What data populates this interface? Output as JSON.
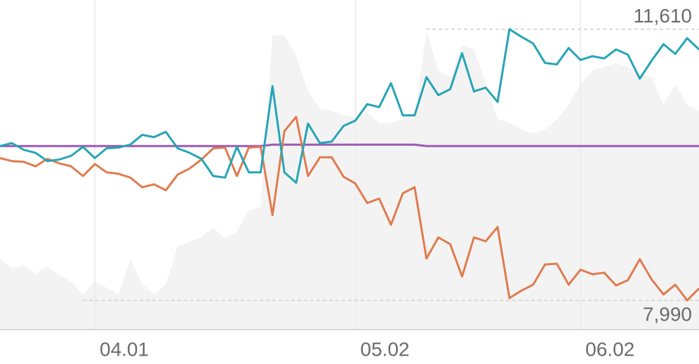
{
  "chart_data": {
    "type": "line",
    "categories": [
      null,
      null,
      null,
      null,
      null,
      null,
      null,
      null,
      "04.01",
      null,
      null,
      null,
      null,
      null,
      null,
      null,
      null,
      null,
      null,
      null,
      null,
      null,
      null,
      null,
      null,
      null,
      null,
      null,
      null,
      null,
      "05.02",
      null,
      null,
      null,
      null,
      null,
      null,
      null,
      null,
      null,
      null,
      null,
      null,
      null,
      null,
      null,
      null,
      null,
      null,
      "06.02",
      null,
      null,
      null,
      null,
      null,
      null,
      null,
      null,
      null,
      null
    ],
    "ylim": [
      7600,
      12000
    ],
    "grid": true,
    "annotations": [
      {
        "value": 11610,
        "label": "11,610"
      },
      {
        "value": 7990,
        "label": "7,990"
      }
    ],
    "series": [
      {
        "kind": "area",
        "color": "#f3f3f3",
        "values": [
          8550,
          8420,
          8460,
          8350,
          8440,
          8330,
          8240,
          8070,
          8240,
          8160,
          8070,
          8540,
          8210,
          8070,
          8210,
          8720,
          8770,
          8840,
          8960,
          8820,
          8910,
          9190,
          9240,
          11530,
          11530,
          11250,
          10780,
          10550,
          10520,
          10460,
          10430,
          10500,
          10360,
          10360,
          10410,
          10460,
          11580,
          11060,
          10970,
          11390,
          11340,
          10880,
          10410,
          10360,
          10270,
          10220,
          10270,
          10410,
          10600,
          10880,
          11060,
          11110,
          11160,
          11110,
          11020,
          10970,
          10600,
          10880,
          10600,
          10520
        ]
      },
      {
        "color": "#9b59b6",
        "values": [
          10050,
          10050,
          10050,
          10050,
          10050,
          10050,
          10050,
          10050,
          10050,
          10050,
          10050,
          10050,
          10050,
          10050,
          10050,
          10050,
          10050,
          10050,
          10050,
          10050,
          10050,
          10050,
          10050,
          10070,
          10070,
          10070,
          10070,
          10070,
          10070,
          10070,
          10070,
          10070,
          10070,
          10070,
          10070,
          10070,
          10050,
          10050,
          10050,
          10050,
          10050,
          10050,
          10050,
          10050,
          10050,
          10050,
          10050,
          10050,
          10050,
          10050,
          10050,
          10050,
          10050,
          10050,
          10050,
          10050,
          10050,
          10050,
          10050,
          10050
        ]
      },
      {
        "color": "#e07b4f",
        "values": [
          9890,
          9850,
          9840,
          9780,
          9880,
          9820,
          9780,
          9650,
          9810,
          9700,
          9680,
          9630,
          9500,
          9540,
          9460,
          9670,
          9750,
          9870,
          10020,
          10030,
          9650,
          10030,
          10040,
          9130,
          10250,
          10440,
          9650,
          9900,
          9900,
          9640,
          9550,
          9290,
          9350,
          9000,
          9420,
          9500,
          8550,
          8830,
          8740,
          8310,
          8830,
          8780,
          8970,
          8020,
          8120,
          8200,
          8470,
          8480,
          8200,
          8400,
          8340,
          8360,
          8190,
          8260,
          8540,
          8270,
          8070,
          8200,
          7990,
          8150
        ]
      },
      {
        "color": "#26a5b5",
        "values": [
          10050,
          10090,
          10000,
          9960,
          9850,
          9870,
          9920,
          10040,
          9890,
          10020,
          10030,
          10070,
          10200,
          10170,
          10240,
          10020,
          9960,
          9880,
          9650,
          9630,
          10040,
          9700,
          9700,
          10850,
          9700,
          9560,
          10350,
          10090,
          10110,
          10320,
          10390,
          10610,
          10570,
          10890,
          10460,
          10460,
          10970,
          10730,
          10810,
          11290,
          10780,
          10830,
          10640,
          11610,
          11510,
          11420,
          11160,
          11140,
          11360,
          11200,
          11250,
          11220,
          11340,
          11270,
          10950,
          11190,
          11410,
          11280,
          11490,
          11340
        ]
      }
    ]
  }
}
